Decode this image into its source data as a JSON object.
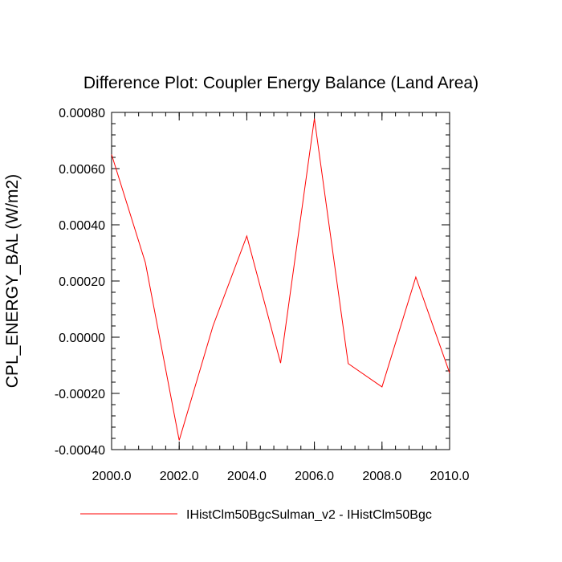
{
  "chart_data": {
    "type": "line",
    "title": "Difference Plot: Coupler Energy Balance (Land Area)",
    "xlabel": "",
    "ylabel": "CPL_ENERGY_BAL  (W/m2)",
    "xlim": [
      2000,
      2010
    ],
    "ylim": [
      -0.0004,
      0.0008
    ],
    "x_ticks": [
      2000,
      2002,
      2004,
      2006,
      2008,
      2010
    ],
    "x_tick_labels": [
      "2000.0",
      "2002.0",
      "2004.0",
      "2006.0",
      "2008.0",
      "2010.0"
    ],
    "y_ticks": [
      -0.0004,
      -0.0002,
      0,
      0.0002,
      0.0004,
      0.0006,
      0.0008
    ],
    "y_tick_labels": [
      "-0.00040",
      "-0.00020",
      "0.00000",
      "0.00020",
      "0.00040",
      "0.00060",
      "0.00080"
    ],
    "grid": false,
    "legend_position": "bottom",
    "x": [
      2000,
      2001,
      2002,
      2003,
      2004,
      2005,
      2006,
      2007,
      2008,
      2009,
      2010
    ],
    "series": [
      {
        "name": "IHistClm50BgcSulman_v2 - IHistClm50Bgc",
        "color": "#ff0000",
        "values": [
          0.00065,
          0.000265,
          -0.000367,
          4e-05,
          0.00036,
          -9.2e-05,
          0.000778,
          -9.4e-05,
          -0.000177,
          0.000214,
          -0.000127
        ]
      }
    ]
  }
}
